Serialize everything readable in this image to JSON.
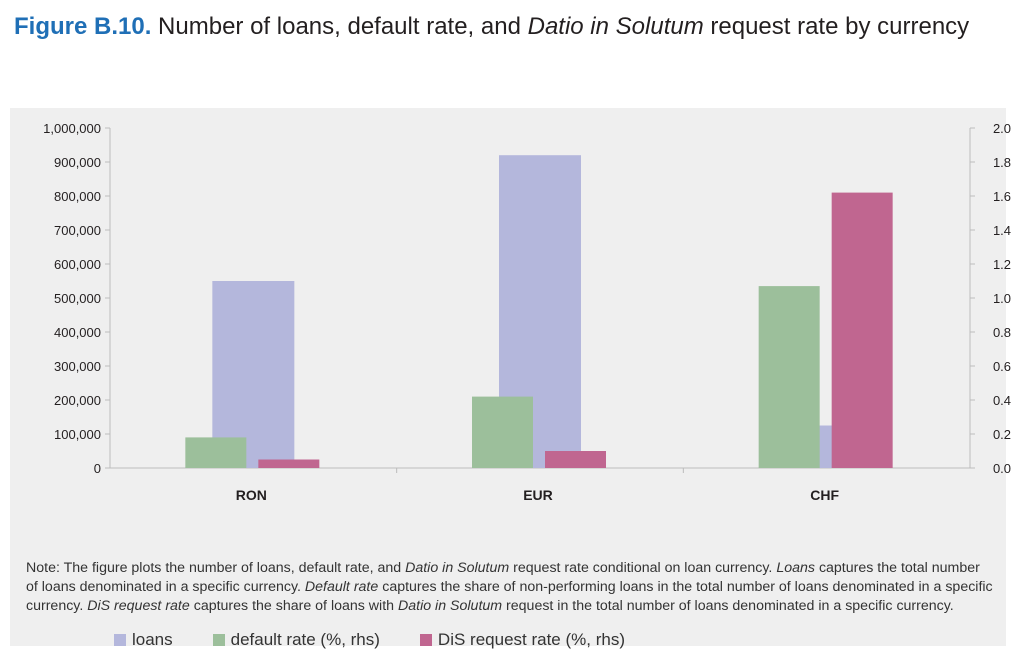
{
  "title": {
    "figure_label": "Figure B.10.",
    "text_before": "Number of loans, default rate, and",
    "text_italic": "Datio in Solutum",
    "text_after": "request rate by currency"
  },
  "note": {
    "p1": "Note: The figure plots the number of loans, default rate, and",
    "i1": "Datio in Solutum",
    "p2": "request rate conditional on loan currency.",
    "i2": "Loans",
    "p3": "captures the total number of loans denominated in a specific currency.",
    "i3": "Default rate",
    "p4": "captures the share of non-performing loans in the total number of loans denominated in a specific currency.",
    "i4": "DiS request rate",
    "p5": "captures the share of loans with",
    "i5": "Datio in Solutum",
    "p6": "request in the total number of loans denominated in a specific currency."
  },
  "chart_data": {
    "type": "bar",
    "categories": [
      "RON",
      "EUR",
      "CHF"
    ],
    "series": [
      {
        "name": "loans",
        "axis": "left",
        "color": "#b4b7dc",
        "values": [
          550000,
          920000,
          125000
        ]
      },
      {
        "name": "default rate (%, rhs)",
        "axis": "right",
        "color": "#9cbf9b",
        "values": [
          0.18,
          0.42,
          1.07
        ]
      },
      {
        "name": "DiS request rate (%, rhs)",
        "axis": "right",
        "color": "#c06690",
        "values": [
          0.05,
          0.1,
          1.62
        ]
      }
    ],
    "y_left": {
      "min": 0,
      "max": 1000000,
      "ticks": [
        "0",
        "100,000",
        "200,000",
        "300,000",
        "400,000",
        "500,000",
        "600,000",
        "700,000",
        "800,000",
        "900,000",
        "1,000,000"
      ]
    },
    "y_right": {
      "min": 0,
      "max": 2.0,
      "ticks": [
        "0.0",
        "0.2",
        "0.4",
        "0.6",
        "0.8",
        "1.0",
        "1.2",
        "1.4",
        "1.6",
        "1.8",
        "2.0"
      ]
    },
    "legend_position": "bottom-left",
    "grid": false
  }
}
